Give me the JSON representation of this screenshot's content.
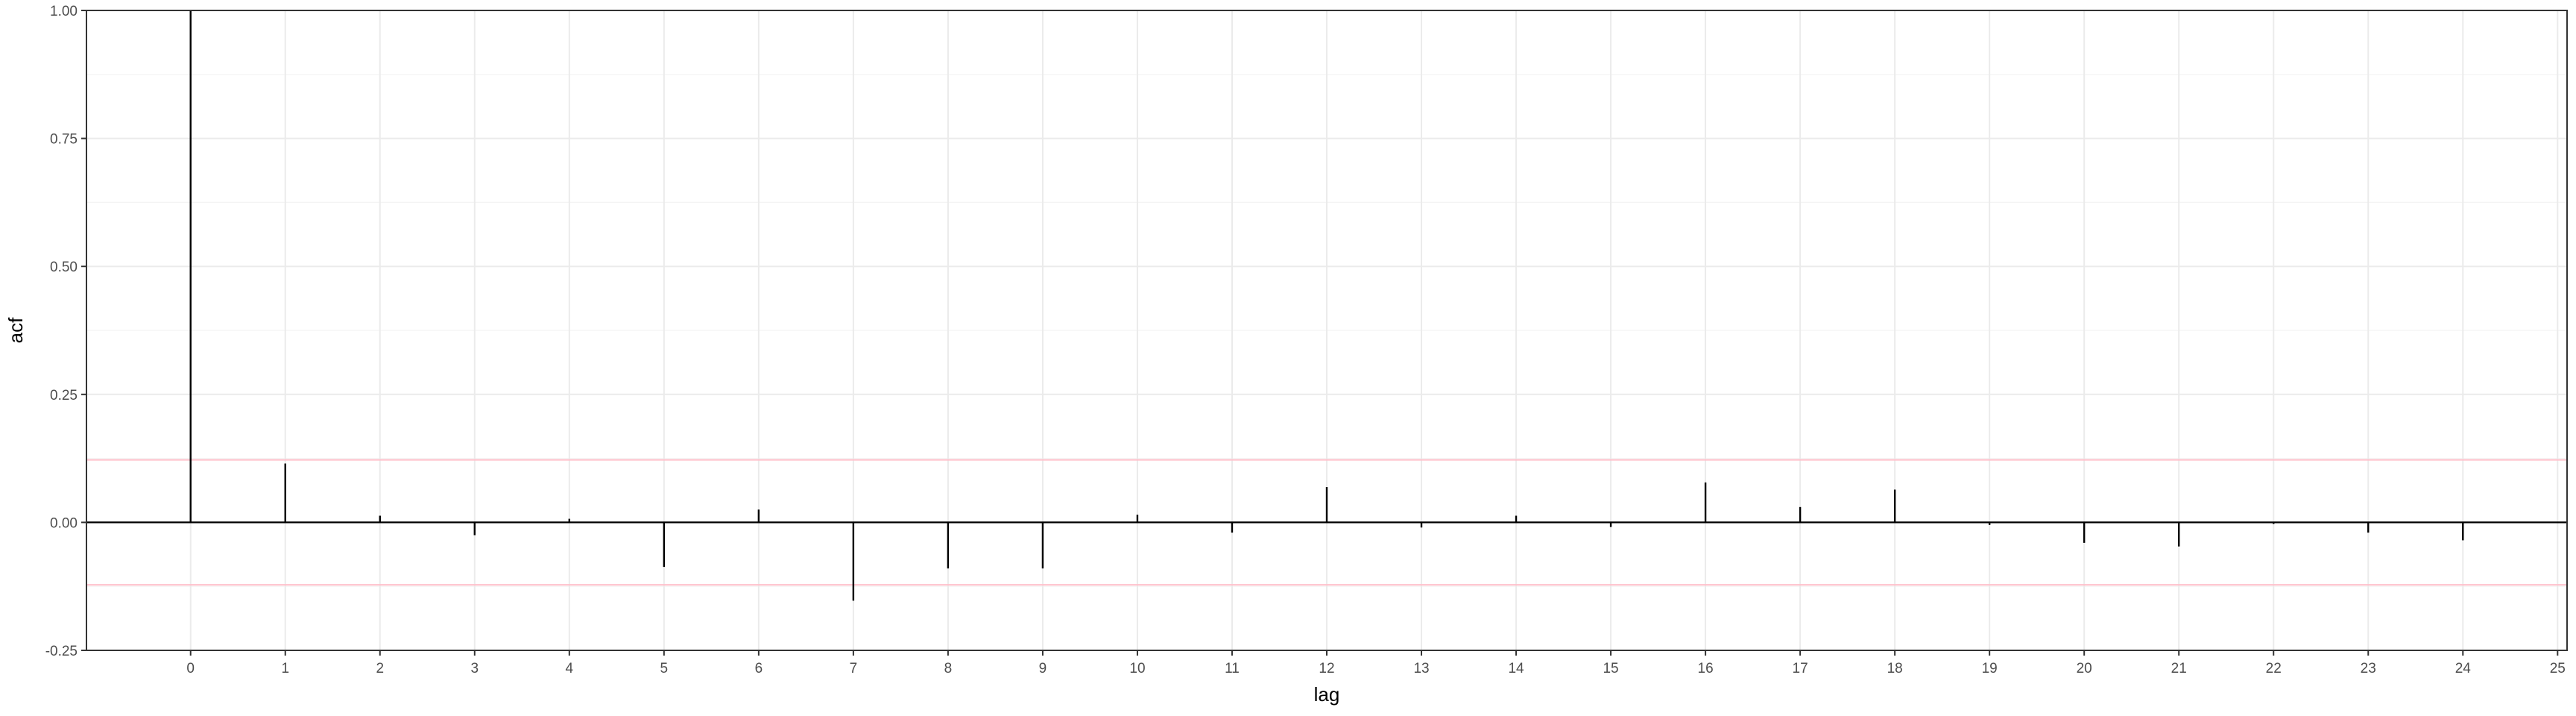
{
  "chart_data": {
    "type": "bar",
    "subtype": "acf-lollipop",
    "title": "",
    "xlabel": "lag",
    "ylabel": "acf",
    "xlim": [
      -1.1,
      25.1
    ],
    "ylim": [
      -0.25,
      1.0
    ],
    "x_ticks": [
      0,
      1,
      2,
      3,
      4,
      5,
      6,
      7,
      8,
      9,
      10,
      11,
      12,
      13,
      14,
      15,
      16,
      17,
      18,
      19,
      20,
      21,
      22,
      23,
      24,
      25
    ],
    "x_tick_labels": [
      "0",
      "1",
      "2",
      "3",
      "4",
      "5",
      "6",
      "7",
      "8",
      "9",
      "10",
      "11",
      "12",
      "13",
      "14",
      "15",
      "16",
      "17",
      "18",
      "19",
      "20",
      "21",
      "22",
      "23",
      "24",
      "25"
    ],
    "y_ticks": [
      -0.25,
      0.0,
      0.25,
      0.5,
      0.75,
      1.0
    ],
    "y_tick_labels": [
      "-0.25",
      "0.00",
      "0.25",
      "0.50",
      "0.75",
      "1.00"
    ],
    "grid": true,
    "legend": "none",
    "lags": [
      0,
      1,
      2,
      3,
      4,
      5,
      6,
      7,
      8,
      9,
      10,
      11,
      12,
      13,
      14,
      15,
      16,
      17,
      18,
      19,
      20,
      21,
      22,
      23,
      24
    ],
    "acf": [
      1.0,
      0.115,
      0.013,
      -0.025,
      0.007,
      -0.087,
      0.025,
      -0.153,
      -0.09,
      -0.09,
      0.015,
      -0.02,
      0.069,
      -0.01,
      0.013,
      -0.009,
      0.078,
      0.03,
      0.064,
      -0.005,
      -0.04,
      -0.047,
      -0.003,
      -0.02,
      -0.035
    ],
    "confidence_bound": 0.122,
    "zero_line": 0.0,
    "colors": {
      "bars": "#000000",
      "confidence_lines": "#ffc0cb",
      "grid": "#ebebeb",
      "panel_border": "#333333",
      "tick_text": "#4d4d4d",
      "axis_title": "#000000",
      "background": "#ffffff"
    }
  }
}
